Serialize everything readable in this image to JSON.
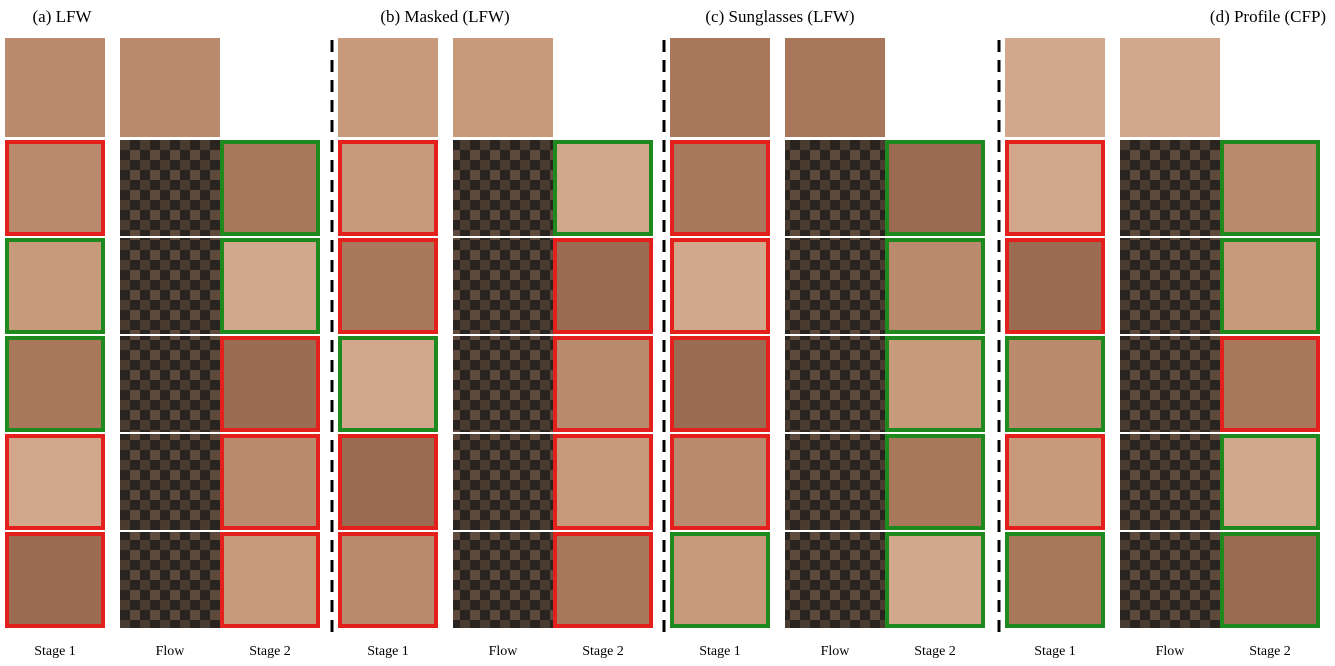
{
  "panels": [
    {
      "title": "(a) LFW",
      "columns": [
        "Stage 1",
        "Flow",
        "Stage 2"
      ],
      "stage1_borders": [
        "#e3201b",
        "#1e8a1e",
        "#1e8a1e",
        "#e3201b",
        "#e3201b"
      ],
      "stage2_borders": [
        "#1e8a1e",
        "#1e8a1e",
        "#e3201b",
        "#e3201b",
        "#e3201b"
      ]
    },
    {
      "title": "(b) Masked (LFW)",
      "columns": [
        "Stage 1",
        "Flow",
        "Stage 2"
      ],
      "stage1_borders": [
        "#e3201b",
        "#e3201b",
        "#1e8a1e",
        "#e3201b",
        "#e3201b"
      ],
      "stage2_borders": [
        "#1e8a1e",
        "#e3201b",
        "#e3201b",
        "#e3201b",
        "#e3201b"
      ]
    },
    {
      "title": "(c) Sunglasses (LFW)",
      "columns": [
        "Stage 1",
        "Flow",
        "Stage 2"
      ],
      "stage1_borders": [
        "#e3201b",
        "#e3201b",
        "#e3201b",
        "#e3201b",
        "#1e8a1e"
      ],
      "stage2_borders": [
        "#1e8a1e",
        "#1e8a1e",
        "#1e8a1e",
        "#1e8a1e",
        "#1e8a1e"
      ]
    },
    {
      "title": "(d) Profile (CFP)",
      "columns": [
        "Stage 1",
        "Flow",
        "Stage 2"
      ],
      "stage1_borders": [
        "#e3201b",
        "#e3201b",
        "#1e8a1e",
        "#e3201b",
        "#1e8a1e"
      ],
      "stage2_borders": [
        "#1e8a1e",
        "#1e8a1e",
        "#e3201b",
        "#1e8a1e",
        "#1e8a1e"
      ]
    }
  ]
}
